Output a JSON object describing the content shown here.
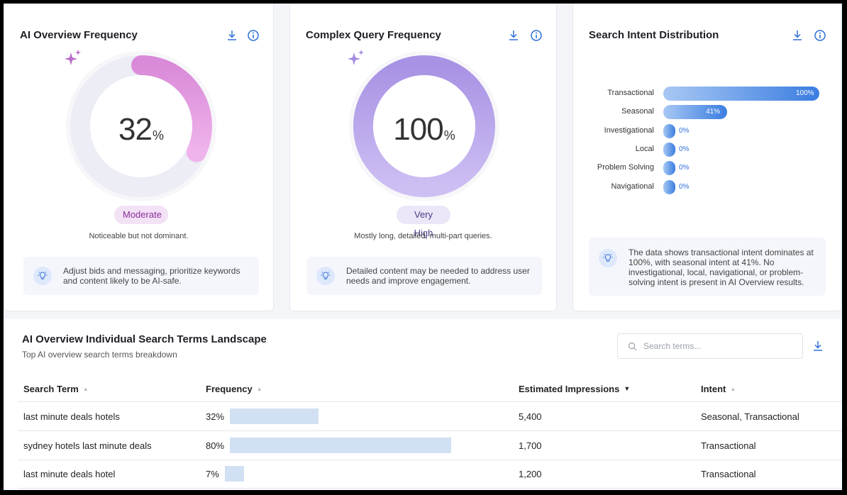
{
  "cards": {
    "ai_overview": {
      "title": "AI Overview Frequency",
      "value": "32",
      "value_fraction": 0.32,
      "unit": "%",
      "level": "Moderate",
      "description": "Noticeable but not dominant.",
      "tip": "Adjust bids and messaging, prioritize keywords and content likely to be AI-safe."
    },
    "complex_query": {
      "title": "Complex Query Frequency",
      "value": "100",
      "value_fraction": 1.0,
      "unit": "%",
      "level": "Very High",
      "description": "Mostly long, detailed, multi-part queries.",
      "tip": "Detailed content may be needed to address user needs and improve engagement."
    },
    "search_intent": {
      "title": "Search Intent Distribution",
      "bars": [
        {
          "label": "Transactional",
          "value": 100,
          "display": "100%"
        },
        {
          "label": "Seasonal",
          "value": 41,
          "display": "41%"
        },
        {
          "label": "Investigational",
          "value": 0,
          "display": "0%"
        },
        {
          "label": "Local",
          "value": 0,
          "display": "0%"
        },
        {
          "label": "Problem Solving",
          "value": 0,
          "display": "0%"
        },
        {
          "label": "Navigational",
          "value": 0,
          "display": "0%"
        }
      ],
      "tip": "The data shows transactional intent dominates at 100%, with seasonal intent at 41%. No investigational, local, navigational, or problem-solving intent is present in AI Overview results."
    }
  },
  "table": {
    "title": "AI Overview Individual Search Terms Landscape",
    "subtitle": "Top AI overview search terms breakdown",
    "search_placeholder": "Search terms...",
    "columns": [
      "Search Term",
      "Frequency",
      "Estimated Impressions",
      "Intent"
    ],
    "rows": [
      {
        "term": "last minute deals hotels",
        "frequency": "32%",
        "frequency_value": 32,
        "impressions": "5,400",
        "intent": "Seasonal, Transactional"
      },
      {
        "term": "sydney hotels last minute deals",
        "frequency": "80%",
        "frequency_value": 80,
        "impressions": "1,700",
        "intent": "Transactional"
      },
      {
        "term": "last minute deals hotel",
        "frequency": "7%",
        "frequency_value": 7,
        "impressions": "1,200",
        "intent": "Transactional"
      }
    ]
  },
  "colors": {
    "accent": "#2e6fd8",
    "ai_gradient_start": "#d98ad8",
    "ai_gradient_end": "#f0b4ec",
    "cq_gradient_start": "#a892e4",
    "cq_gradient_end": "#cdbff3",
    "freq_bar": "#d1e0f3"
  },
  "icons": [
    "download-icon",
    "info-icon",
    "sparkle-icon",
    "lightbulb-icon",
    "search-icon",
    "sort-asc-icon",
    "sort-desc-icon"
  ]
}
